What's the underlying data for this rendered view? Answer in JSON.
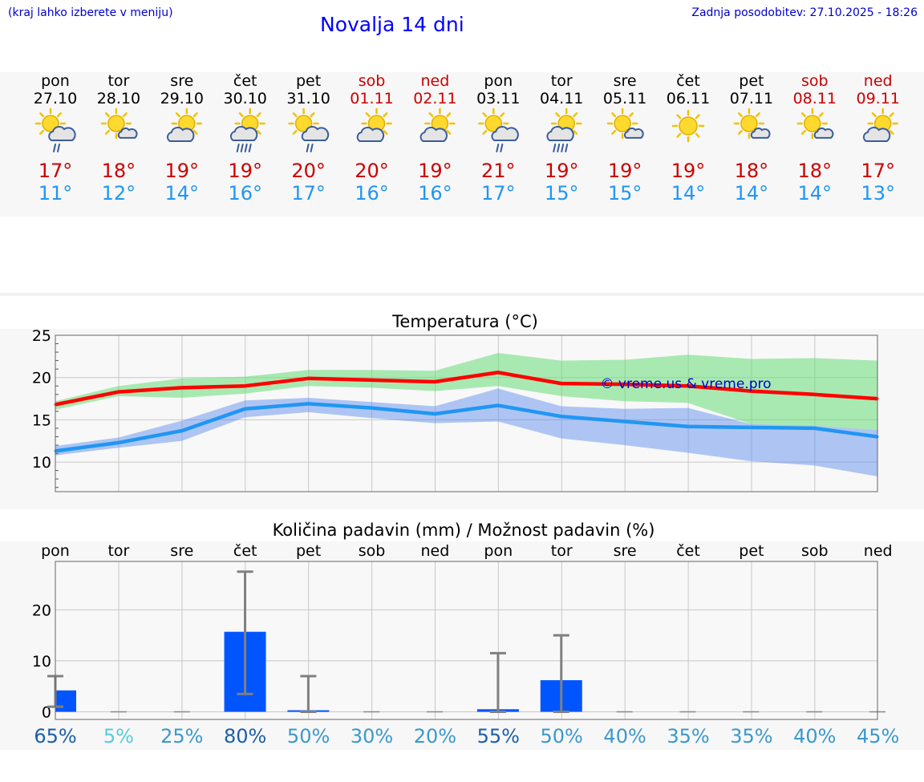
{
  "header": {
    "menu_hint": "(kraj lahko izberete v meniju)",
    "title": "Novalja 14 dni",
    "updated": "Zadnja posodobitev: 27.10.2025 - 18:26"
  },
  "days": [
    {
      "dow": "pon",
      "date": "27.10",
      "weekend": false,
      "icon": "sun-cloud-rain-icon",
      "tmax": "17°",
      "tmin": "11°"
    },
    {
      "dow": "tor",
      "date": "28.10",
      "weekend": false,
      "icon": "sun-small-cloud-icon",
      "tmax": "18°",
      "tmin": "12°"
    },
    {
      "dow": "sre",
      "date": "29.10",
      "weekend": false,
      "icon": "sun-cloud-icon",
      "tmax": "19°",
      "tmin": "14°"
    },
    {
      "dow": "čet",
      "date": "30.10",
      "weekend": false,
      "icon": "sun-cloud-heavy-rain-icon",
      "tmax": "19°",
      "tmin": "16°"
    },
    {
      "dow": "pet",
      "date": "31.10",
      "weekend": false,
      "icon": "sun-cloud-rain-icon",
      "tmax": "20°",
      "tmin": "17°"
    },
    {
      "dow": "sob",
      "date": "01.11",
      "weekend": true,
      "icon": "sun-cloud-icon",
      "tmax": "20°",
      "tmin": "16°"
    },
    {
      "dow": "ned",
      "date": "02.11",
      "weekend": true,
      "icon": "sun-cloud-icon",
      "tmax": "19°",
      "tmin": "16°"
    },
    {
      "dow": "pon",
      "date": "03.11",
      "weekend": false,
      "icon": "sun-cloud-rain-icon",
      "tmax": "21°",
      "tmin": "17°"
    },
    {
      "dow": "tor",
      "date": "04.11",
      "weekend": false,
      "icon": "sun-cloud-heavy-rain-icon",
      "tmax": "19°",
      "tmin": "15°"
    },
    {
      "dow": "sre",
      "date": "05.11",
      "weekend": false,
      "icon": "sun-small-cloud-icon",
      "tmax": "19°",
      "tmin": "15°"
    },
    {
      "dow": "čet",
      "date": "06.11",
      "weekend": false,
      "icon": "sun-icon",
      "tmax": "19°",
      "tmin": "14°"
    },
    {
      "dow": "pet",
      "date": "07.11",
      "weekend": false,
      "icon": "sun-small-cloud-icon",
      "tmax": "18°",
      "tmin": "14°"
    },
    {
      "dow": "sob",
      "date": "08.11",
      "weekend": true,
      "icon": "sun-small-cloud-icon",
      "tmax": "18°",
      "tmin": "14°"
    },
    {
      "dow": "ned",
      "date": "09.11",
      "weekend": true,
      "icon": "sun-cloud-icon",
      "tmax": "17°",
      "tmin": "13°"
    }
  ],
  "colors": {
    "weekday": "#000000",
    "weekend": "#cc0000",
    "tmax": "#cc0000",
    "tmin": "#2196f3",
    "max_line": "#ff0000",
    "min_line": "#2196f3",
    "max_band": "#66dd77",
    "min_band": "#5588ee",
    "bar": "#0055ff",
    "whisker": "#808080",
    "watermark": "#0000cc"
  },
  "chart_data": [
    {
      "type": "line",
      "title": "Temperatura (°C)",
      "x": [
        "27.10",
        "28.10",
        "29.10",
        "30.10",
        "31.10",
        "01.11",
        "02.11",
        "03.11",
        "04.11",
        "05.11",
        "06.11",
        "07.11",
        "08.11",
        "09.11"
      ],
      "ylim": [
        6.5,
        25
      ],
      "yticks": [
        10,
        15,
        20,
        25
      ],
      "grid": true,
      "watermark": "© vreme.us & vreme.pro",
      "series": [
        {
          "role": "max",
          "values": [
            16.8,
            18.3,
            18.8,
            19.0,
            19.9,
            19.7,
            19.5,
            20.6,
            19.3,
            19.2,
            19.0,
            18.4,
            18.0,
            17.5
          ],
          "band_low": [
            16.2,
            17.8,
            17.6,
            18.1,
            19.0,
            18.8,
            18.4,
            19.0,
            17.8,
            17.2,
            17.0,
            14.5,
            14.3,
            13.8
          ],
          "band_high": [
            17.2,
            19.0,
            19.9,
            20.1,
            20.9,
            20.9,
            20.8,
            22.9,
            22.0,
            22.1,
            22.7,
            22.2,
            22.3,
            22.0
          ]
        },
        {
          "role": "min",
          "values": [
            11.3,
            12.3,
            13.7,
            16.3,
            16.9,
            16.4,
            15.7,
            16.7,
            15.4,
            14.8,
            14.2,
            14.1,
            14.0,
            13.0
          ],
          "band_low": [
            10.8,
            11.7,
            12.5,
            15.3,
            15.9,
            15.2,
            14.6,
            14.8,
            12.8,
            12.0,
            11.1,
            10.1,
            9.6,
            8.3
          ],
          "band_high": [
            11.9,
            12.9,
            14.9,
            17.3,
            17.6,
            17.1,
            16.6,
            18.7,
            16.6,
            16.3,
            16.4,
            14.5,
            14.3,
            13.8
          ]
        }
      ]
    },
    {
      "type": "bar",
      "title": "Količina padavin (mm) / Možnost padavin (%)",
      "categories": [
        "pon",
        "tor",
        "sre",
        "čet",
        "pet",
        "sob",
        "ned",
        "pon",
        "tor",
        "sre",
        "čet",
        "pet",
        "sob",
        "ned"
      ],
      "values": [
        4.2,
        0,
        0,
        15.7,
        0.3,
        0,
        0,
        0.5,
        6.2,
        0,
        0,
        0,
        0,
        0
      ],
      "error_high": [
        7.0,
        0,
        0,
        27.5,
        7.0,
        0,
        0,
        11.5,
        15.0,
        0,
        0,
        0,
        0,
        0
      ],
      "error_low": [
        1.0,
        0,
        0,
        3.5,
        0,
        0,
        0,
        0,
        0,
        0,
        0,
        0,
        0,
        0
      ],
      "ylim": [
        -1.5,
        29.5
      ],
      "yticks": [
        0,
        10,
        20
      ],
      "probability": [
        "65%",
        "5%",
        "25%",
        "80%",
        "50%",
        "30%",
        "20%",
        "55%",
        "50%",
        "40%",
        "35%",
        "35%",
        "40%",
        "45%"
      ],
      "probability_colors": [
        "#1a5fa8",
        "#55ccdd",
        "#3a99cc",
        "#1a5fa8",
        "#3a99cc",
        "#3a99cc",
        "#3a99cc",
        "#1a5fa8",
        "#3a99cc",
        "#3a99cc",
        "#3a99cc",
        "#3a99cc",
        "#3a99cc",
        "#3a99cc"
      ]
    }
  ]
}
